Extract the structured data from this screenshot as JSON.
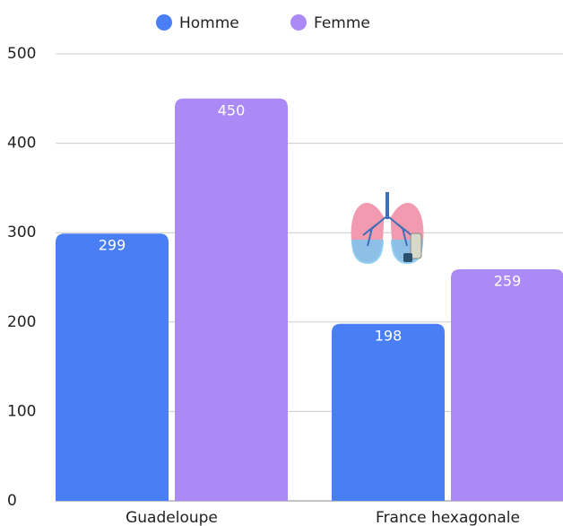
{
  "chart_data": {
    "type": "bar",
    "categories": [
      "Guadeloupe",
      "France hexagonale"
    ],
    "series": [
      {
        "name": "Homme",
        "color": "#4a7ef5",
        "values": [
          299,
          198
        ]
      },
      {
        "name": "Femme",
        "color": "#ab8af5",
        "values": [
          450,
          259
        ]
      }
    ],
    "ylim": [
      0,
      500
    ],
    "yticks": [
      0,
      100,
      200,
      300,
      400,
      500
    ],
    "grid": true
  }
}
